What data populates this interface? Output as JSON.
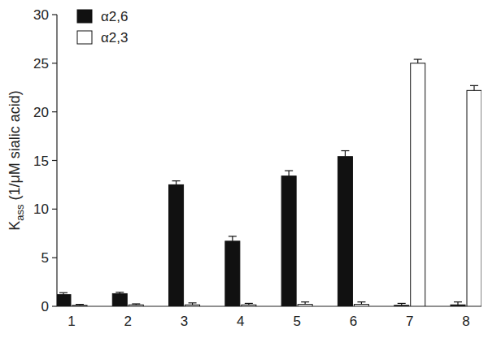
{
  "chart_data": {
    "type": "bar",
    "y_label": "Kass (1/μM sialic acid)",
    "categories": [
      "1",
      "2",
      "3",
      "4",
      "5",
      "6",
      "7",
      "8"
    ],
    "series": [
      {
        "name": "α2,6",
        "color": "#111111",
        "values": [
          1.2,
          1.3,
          12.5,
          6.7,
          13.4,
          15.4,
          0.1,
          0.15
        ],
        "errors": [
          0.2,
          0.15,
          0.4,
          0.5,
          0.55,
          0.6,
          0.2,
          0.3
        ]
      },
      {
        "name": "α2,3",
        "color": "#ffffff",
        "values": [
          0.1,
          0.15,
          0.15,
          0.15,
          0.2,
          0.2,
          25.0,
          22.2
        ],
        "errors": [
          0.1,
          0.1,
          0.2,
          0.15,
          0.25,
          0.25,
          0.4,
          0.5
        ]
      }
    ],
    "ylim": [
      0,
      30
    ],
    "yticks": [
      0,
      5,
      10,
      15,
      20,
      25,
      30
    ],
    "grid": false,
    "legend": "top-left"
  }
}
